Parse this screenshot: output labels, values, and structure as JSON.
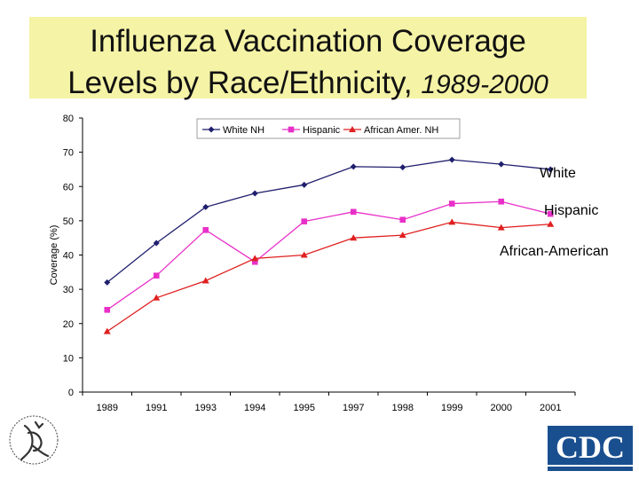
{
  "slide": {
    "title_line1": "Influenza Vaccination Coverage",
    "title_line2_main": "Levels by Race/Ethnicity,",
    "title_line2_years": "1989-2000"
  },
  "logos": {
    "hhs": "hhs-eagle-seal",
    "cdc": "CDC"
  },
  "chart_data": {
    "type": "line",
    "title": "Influenza Vaccination Coverage Levels by Race/Ethnicity, 1989-2000",
    "xlabel": "",
    "ylabel": "Coverage (%)",
    "ylim": [
      0,
      80
    ],
    "yticks": [
      0,
      10,
      20,
      30,
      40,
      50,
      60,
      70,
      80
    ],
    "categories": [
      "1989",
      "1991",
      "1993",
      "1994",
      "1995",
      "1997",
      "1998",
      "1999",
      "2000",
      "2001"
    ],
    "grid": false,
    "legend_position": "top-right",
    "series": [
      {
        "name": "White NH",
        "color": "#1f1f6e",
        "marker": "diamond",
        "values": [
          32,
          43.5,
          54,
          58,
          60.5,
          65.8,
          65.6,
          67.8,
          66.5,
          65
        ]
      },
      {
        "name": "Hispanic",
        "color": "#e830c8",
        "marker": "square",
        "values": [
          24,
          34,
          47.3,
          38,
          49.8,
          52.6,
          50.3,
          55,
          55.6,
          52
        ]
      },
      {
        "name": "African Amer. NH",
        "color": "#e02020",
        "marker": "triangle",
        "values": [
          17.7,
          27.5,
          32.5,
          39,
          40,
          45,
          45.8,
          49.6,
          48,
          49
        ]
      }
    ],
    "annotations": [
      {
        "text": "White",
        "series": "White NH",
        "color": "#1f6e8c"
      },
      {
        "text": "Hispanic",
        "series": "Hispanic",
        "color": "#000000"
      },
      {
        "text": "African-American",
        "series": "African Amer. NH",
        "color": "#000000"
      }
    ]
  }
}
